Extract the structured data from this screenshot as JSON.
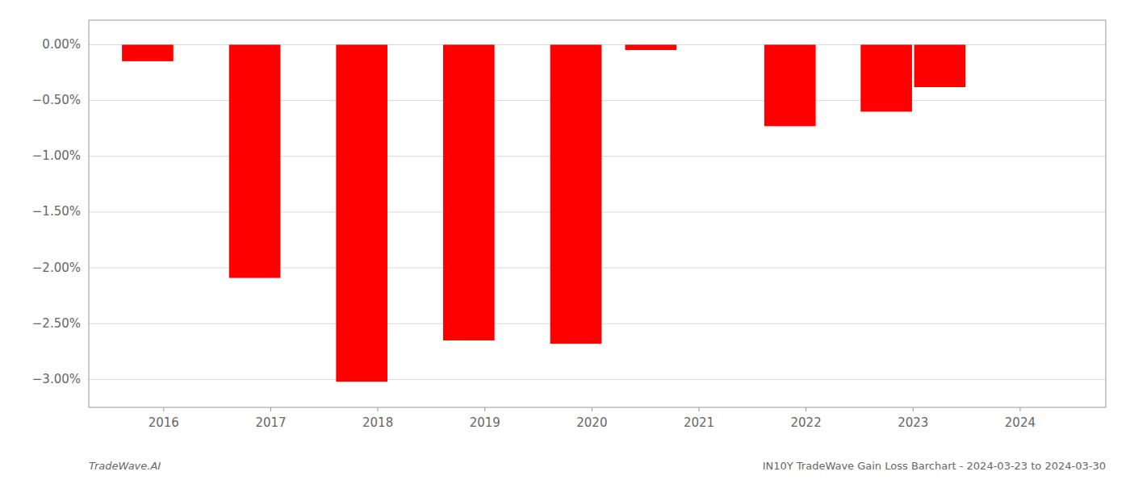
{
  "chart_data": {
    "type": "bar",
    "x": [
      2015.85,
      2016.85,
      2017.85,
      2018.85,
      2019.85,
      2020.55,
      2021.85,
      2022.75,
      2023.25
    ],
    "values": [
      -0.148,
      -2.09,
      -3.02,
      -2.65,
      -2.68,
      -0.048,
      -0.73,
      -0.6,
      -0.38
    ],
    "color": "red",
    "xlim": [
      2015.3,
      2024.8
    ],
    "xticks": [
      2016,
      2017,
      2018,
      2019,
      2020,
      2021,
      2022,
      2023,
      2024
    ],
    "ylim": [
      -3.25,
      0.22
    ],
    "yticks": [
      {
        "value": 0.0,
        "label": "0.00%"
      },
      {
        "value": -0.5,
        "label": "−0.50%"
      },
      {
        "value": -1.0,
        "label": "−1.00%"
      },
      {
        "value": -1.5,
        "label": "−1.50%"
      },
      {
        "value": -2.0,
        "label": "−2.00%"
      },
      {
        "value": -2.5,
        "label": "−2.50%"
      },
      {
        "value": -3.0,
        "label": "−3.00%"
      }
    ],
    "grid": true,
    "annotations": [
      "TradeWave.AI",
      "IN10Y TradeWave Gain Loss Barchart - 2024-03-23 to 2024-03-30"
    ]
  }
}
